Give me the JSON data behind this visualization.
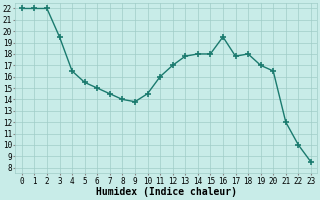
{
  "x": [
    0,
    1,
    2,
    3,
    4,
    5,
    6,
    7,
    8,
    9,
    10,
    11,
    12,
    13,
    14,
    15,
    16,
    17,
    18,
    19,
    20,
    21,
    22,
    23
  ],
  "y": [
    22,
    22,
    22,
    19.5,
    16.5,
    15.5,
    15,
    14.5,
    14,
    13.8,
    14.5,
    16,
    17,
    17.8,
    18,
    18,
    19.5,
    17.8,
    18,
    17,
    16.5,
    12,
    10,
    8.5
  ],
  "line_color": "#1a7a6e",
  "marker": "+",
  "marker_size": 4,
  "marker_lw": 1.2,
  "bg_color": "#c8ece8",
  "grid_color": "#a0cdc8",
  "xlabel": "Humidex (Indice chaleur)",
  "xlim": [
    -0.5,
    23.5
  ],
  "ylim": [
    7.5,
    22.5
  ],
  "yticks": [
    8,
    9,
    10,
    11,
    12,
    13,
    14,
    15,
    16,
    17,
    18,
    19,
    20,
    21,
    22
  ],
  "xticks": [
    0,
    1,
    2,
    3,
    4,
    5,
    6,
    7,
    8,
    9,
    10,
    11,
    12,
    13,
    14,
    15,
    16,
    17,
    18,
    19,
    20,
    21,
    22,
    23
  ],
  "xlabel_fontsize": 7,
  "tick_fontsize": 5.5,
  "linewidth": 1.0
}
